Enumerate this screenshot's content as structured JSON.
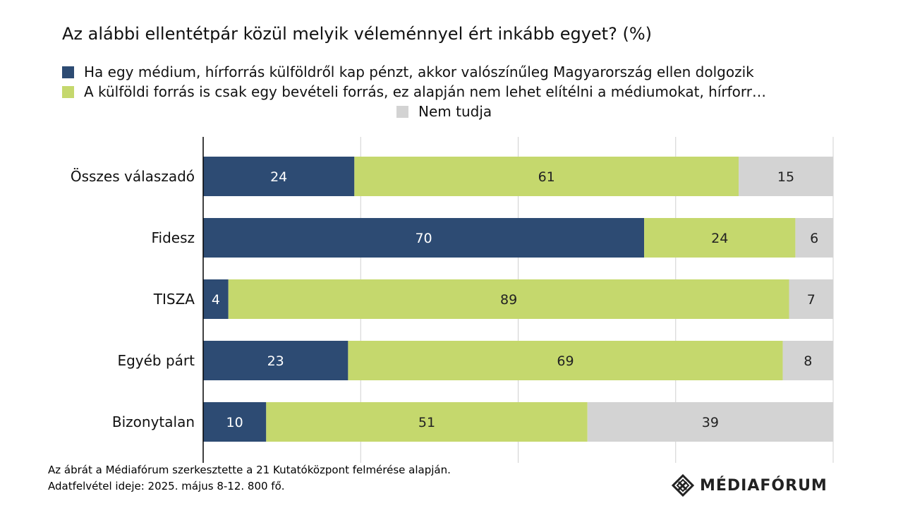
{
  "chart_data": {
    "type": "bar",
    "orientation": "horizontal",
    "stacked": true,
    "title": "Az alábbi ellentétpár közül melyik véleménnyel ért inkább egyet? (%)",
    "categories": [
      "Összes válaszadó",
      "Fidesz",
      "TISZA",
      "Egyéb párt",
      "Bizonytalan"
    ],
    "series": [
      {
        "name": "Ha egy médium, hírforrás külföldről kap pénzt, akkor valószínűleg Magyarország ellen dolgozik",
        "color": "#2d4b73",
        "values": [
          24,
          70,
          4,
          23,
          10
        ]
      },
      {
        "name": "A külföldi forrás is csak egy bevételi forrás, ez alapján nem lehet elítélni a médiumokat, hírforr…",
        "color": "#c5d86d",
        "values": [
          61,
          24,
          89,
          69,
          51
        ]
      },
      {
        "name": "Nem tudja",
        "color": "#d3d3d3",
        "values": [
          15,
          6,
          7,
          8,
          39
        ]
      }
    ],
    "xlim": [
      0,
      100
    ],
    "grid": true,
    "legend": "top",
    "data_labels": true
  },
  "footer": {
    "source_line1": "Az ábrát a Médiafórum szerkesztette a 21 Kutatóközpont felmérése alapján.",
    "source_line2": "Adatfelvétel ideje: 2025. május 8-12. 800 fő."
  },
  "brand": {
    "name": "MÉDIAFÓRUM",
    "icon": "mediaforum-logo-icon"
  }
}
